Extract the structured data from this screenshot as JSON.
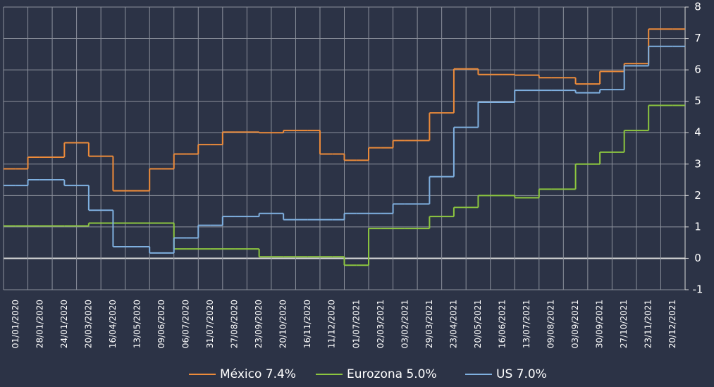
{
  "chart_data": {
    "type": "step-line",
    "categories": [
      "01/01/2020",
      null,
      "28/01/2020",
      null,
      "24/01/2020",
      null,
      "20/03/2020",
      null,
      "16/04/2020",
      null,
      "13/05/2020",
      null,
      "09/06/2020",
      null,
      "06/07/2020",
      null,
      "31/07/2020",
      null,
      "27/08/2020",
      null,
      "23/09/2020",
      null,
      "20/10/2020",
      null,
      "16/11/2020",
      null,
      "11/12/2020",
      null,
      "01/07/2021",
      null,
      "02/03/2021",
      null,
      "03/02/2021",
      null,
      "29/03/2021",
      null,
      "23/04/2021",
      null,
      "20/05/2021",
      null,
      "16/06/2021",
      null,
      "13/07/2021",
      null,
      "09/08/2021",
      null,
      "03/09/2021",
      null,
      "30/09/2021",
      null,
      "27/10/2021",
      null,
      "23/11/2021",
      null,
      "20/12/2021",
      null
    ],
    "series": [
      {
        "name": "México 7.4%",
        "color": "#ed8b3a",
        "values": [
          2.85,
          2.85,
          3.22,
          3.22,
          3.22,
          3.68,
          3.68,
          3.25,
          3.25,
          2.15,
          2.15,
          2.15,
          2.85,
          2.85,
          3.32,
          3.32,
          3.62,
          3.62,
          4.02,
          4.02,
          4.02,
          4.0,
          4.0,
          4.07,
          4.07,
          4.07,
          3.32,
          3.32,
          3.12,
          3.12,
          3.52,
          3.52,
          3.75,
          3.75,
          3.75,
          4.63,
          4.63,
          6.03,
          6.03,
          5.85,
          5.85,
          5.85,
          5.83,
          5.83,
          5.75,
          5.75,
          5.75,
          5.55,
          5.55,
          5.95,
          5.95,
          6.2,
          6.2,
          7.3,
          7.3,
          7.3
        ]
      },
      {
        "name": "Eurozona 5.0%",
        "color": "#8cc63f",
        "values": [
          1.03,
          1.03,
          1.03,
          1.03,
          1.03,
          1.03,
          1.03,
          1.12,
          1.12,
          1.12,
          1.12,
          1.12,
          1.12,
          1.12,
          0.3,
          0.3,
          0.3,
          0.3,
          0.3,
          0.3,
          0.3,
          0.05,
          0.05,
          0.05,
          0.05,
          0.05,
          0.05,
          0.05,
          -0.22,
          -0.22,
          0.95,
          0.95,
          0.95,
          0.95,
          0.95,
          1.33,
          1.33,
          1.62,
          1.62,
          2.0,
          2.0,
          2.0,
          1.93,
          1.93,
          2.2,
          2.2,
          2.2,
          3.0,
          3.0,
          3.38,
          3.38,
          4.07,
          4.07,
          4.87,
          4.87,
          4.87
        ]
      },
      {
        "name": "US 7.0%",
        "color": "#7fb0e0",
        "values": [
          2.32,
          2.32,
          2.5,
          2.5,
          2.5,
          2.32,
          2.32,
          1.53,
          1.53,
          0.37,
          0.37,
          0.37,
          0.17,
          0.17,
          0.65,
          0.65,
          1.05,
          1.05,
          1.33,
          1.33,
          1.33,
          1.43,
          1.43,
          1.23,
          1.23,
          1.23,
          1.23,
          1.23,
          1.43,
          1.43,
          1.43,
          1.43,
          1.73,
          1.73,
          1.73,
          2.6,
          2.6,
          4.17,
          4.17,
          4.97,
          4.97,
          4.97,
          5.35,
          5.35,
          5.35,
          5.35,
          5.35,
          5.27,
          5.27,
          5.37,
          5.37,
          6.13,
          6.13,
          6.75,
          6.75,
          6.75
        ]
      }
    ],
    "ylim": [
      -1,
      8
    ],
    "yticks": [
      -1,
      0,
      1,
      2,
      3,
      4,
      5,
      6,
      7,
      8
    ],
    "grid": true,
    "legend": "bottom"
  }
}
